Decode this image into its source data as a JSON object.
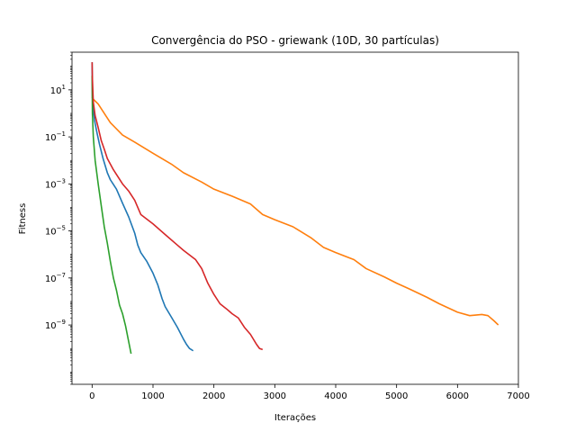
{
  "chart_data": {
    "type": "line",
    "title": "Convergência do PSO - griewank (10D, 30 partículas)",
    "xlabel": "Iterações",
    "ylabel": "Fitness",
    "xlim": [
      -330,
      7000
    ],
    "ylim": [
      3e-12,
      400
    ],
    "yscale": "log",
    "grid": false,
    "x_ticks": [
      0,
      1000,
      2000,
      3000,
      4000,
      5000,
      6000,
      7000
    ],
    "x_tick_labels": [
      "0",
      "1000",
      "2000",
      "3000",
      "4000",
      "5000",
      "6000",
      "7000"
    ],
    "y_ticks": [
      1e-09,
      1e-07,
      1e-05,
      0.001,
      0.1,
      10
    ],
    "y_tick_labels": [
      {
        "base": "10",
        "exp": "−9"
      },
      {
        "base": "10",
        "exp": "−7"
      },
      {
        "base": "10",
        "exp": "−5"
      },
      {
        "base": "10",
        "exp": "−3"
      },
      {
        "base": "10",
        "exp": "−1"
      },
      {
        "base": "10",
        "exp": "1"
      }
    ],
    "series": [
      {
        "color": "#1f77b4",
        "x": [
          0,
          5,
          15,
          40,
          80,
          120,
          180,
          250,
          300,
          400,
          500,
          600,
          700,
          750,
          800,
          900,
          1000,
          1080,
          1150,
          1200,
          1300,
          1400,
          1500,
          1550,
          1600,
          1660
        ],
        "y": [
          150,
          5,
          2,
          0.5,
          0.15,
          0.05,
          0.012,
          0.003,
          0.0015,
          0.0006,
          0.00015,
          4e-05,
          8e-06,
          2.5e-06,
          1.2e-06,
          5e-07,
          1.6e-07,
          5e-08,
          1.3e-08,
          6e-09,
          2.2e-09,
          8e-10,
          2.5e-10,
          1.5e-10,
          1e-10,
          8e-11
        ]
      },
      {
        "color": "#ff7f0e",
        "x": [
          0,
          20,
          100,
          200,
          300,
          500,
          700,
          1000,
          1300,
          1500,
          1800,
          2000,
          2300,
          2600,
          2800,
          3000,
          3300,
          3600,
          3800,
          4000,
          4300,
          4500,
          4800,
          5000,
          5200,
          5500,
          5700,
          6000,
          6200,
          6400,
          6500,
          6600,
          6670
        ],
        "y": [
          5,
          4,
          2.5,
          1,
          0.4,
          0.12,
          0.06,
          0.02,
          0.007,
          0.003,
          0.0012,
          0.0006,
          0.0003,
          0.00014,
          5e-05,
          3e-05,
          1.5e-05,
          5e-06,
          2e-06,
          1.2e-06,
          6e-07,
          2.5e-07,
          1.1e-07,
          6e-08,
          3.5e-08,
          1.5e-08,
          8e-09,
          3.5e-09,
          2.5e-09,
          2.8e-09,
          2.5e-09,
          1.5e-09,
          1e-09
        ]
      },
      {
        "color": "#2ca02c",
        "x": [
          0,
          5,
          20,
          50,
          100,
          150,
          200,
          250,
          300,
          350,
          400,
          450,
          500,
          550,
          600,
          640
        ],
        "y": [
          40,
          1,
          0.1,
          0.01,
          0.001,
          0.00012,
          1.5e-05,
          3e-06,
          5e-07,
          1e-07,
          3e-08,
          7e-09,
          3e-09,
          9e-10,
          2e-10,
          6e-11
        ]
      },
      {
        "color": "#d62728",
        "x": [
          0,
          5,
          20,
          50,
          100,
          150,
          200,
          250,
          350,
          500,
          600,
          700,
          800,
          1000,
          1200,
          1400,
          1500,
          1700,
          1800,
          1900,
          2000,
          2100,
          2200,
          2300,
          2400,
          2500,
          2600,
          2700,
          2750,
          2800
        ],
        "y": [
          150,
          30,
          3,
          0.8,
          0.25,
          0.07,
          0.03,
          0.012,
          0.004,
          0.001,
          0.0005,
          0.0002,
          5e-05,
          2e-05,
          7e-06,
          2.5e-06,
          1.5e-06,
          6e-07,
          2.5e-07,
          6e-08,
          2e-08,
          8e-09,
          5e-09,
          3e-09,
          2e-09,
          8e-10,
          4e-10,
          1.5e-10,
          1e-10,
          9e-11
        ]
      }
    ]
  }
}
